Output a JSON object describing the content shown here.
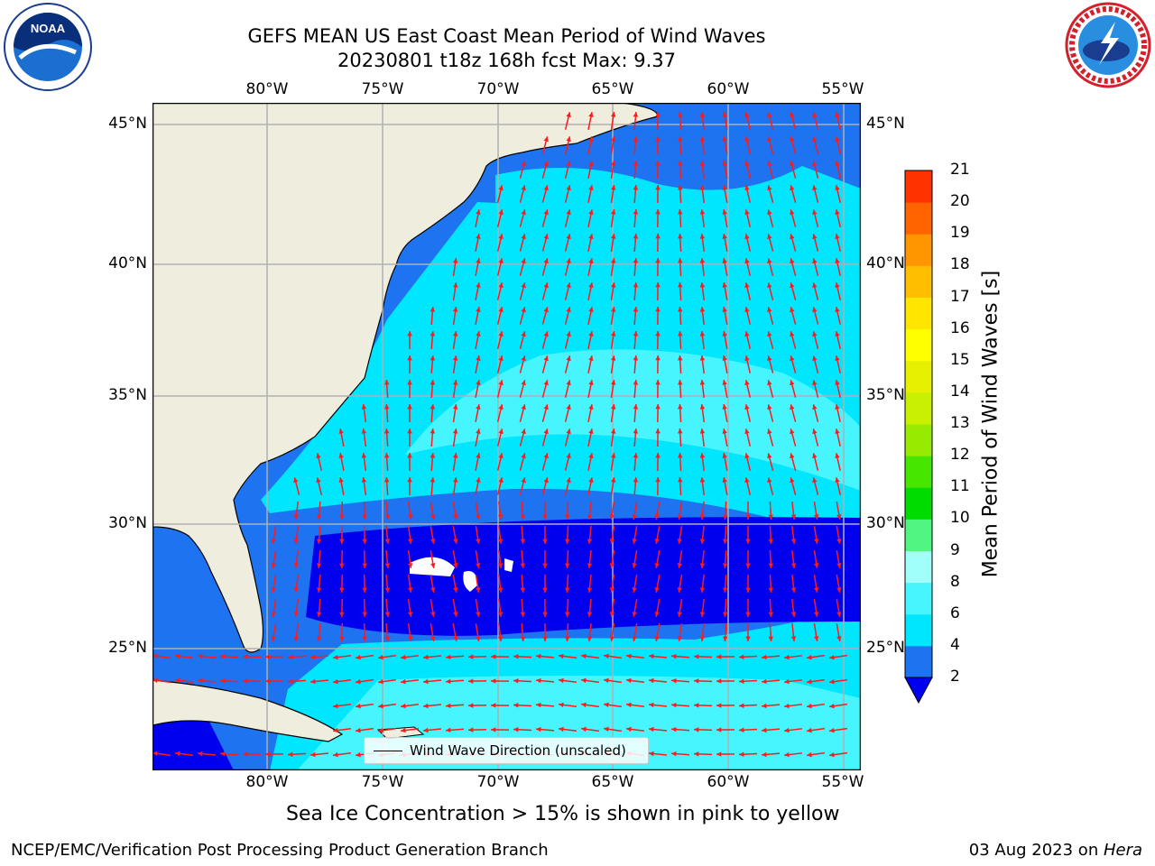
{
  "title": {
    "line1": "GEFS MEAN US East Coast Mean Period of Wind Waves",
    "line2": "20230801 t18z 168h fcst   Max: 9.37"
  },
  "logos": {
    "left": {
      "name": "noaa-logo",
      "text": "NOAA"
    },
    "right": {
      "name": "nws-logo",
      "text": "NATIONAL WEATHER SERVICE"
    }
  },
  "map": {
    "lon_labels": [
      "80°W",
      "75°W",
      "70°W",
      "65°W",
      "60°W",
      "55°W"
    ],
    "lat_labels": [
      "45°N",
      "40°N",
      "35°N",
      "30°N",
      "25°N"
    ],
    "legend_label": "Wind Wave Direction (unscaled)",
    "colors": {
      "land": "#efedde",
      "band_2_4": "#1e73f0",
      "band_4_6": "#00e6ff",
      "band_6_8": "#46f5ff",
      "band_below_2": "#0000ee",
      "arrow": "#ff1a1a",
      "grid": "#b0b0b0"
    }
  },
  "colorbar": {
    "label": "Mean Period of Wind Waves [s]",
    "ticks": [
      "2",
      "4",
      "6",
      "8",
      "9",
      "10",
      "11",
      "12",
      "13",
      "14",
      "15",
      "16",
      "17",
      "18",
      "19",
      "20",
      "21"
    ],
    "colors": [
      "#1e73f0",
      "#00e6ff",
      "#46f5ff",
      "#a0fff8",
      "#50f582",
      "#00dc00",
      "#46e600",
      "#96eb00",
      "#c8f000",
      "#e6f000",
      "#ffff00",
      "#ffe600",
      "#ffbe00",
      "#ff9600",
      "#ff6400",
      "#ff3200",
      "#ff0000"
    ],
    "extend_color": "#0000ee"
  },
  "caption": "Sea Ice Concentration > 15% is shown in pink to yellow",
  "footer": {
    "left": "NCEP/EMC/Verification Post Processing Product Generation Branch",
    "right_date": "03 Aug 2023 on ",
    "right_host": "Hera"
  }
}
